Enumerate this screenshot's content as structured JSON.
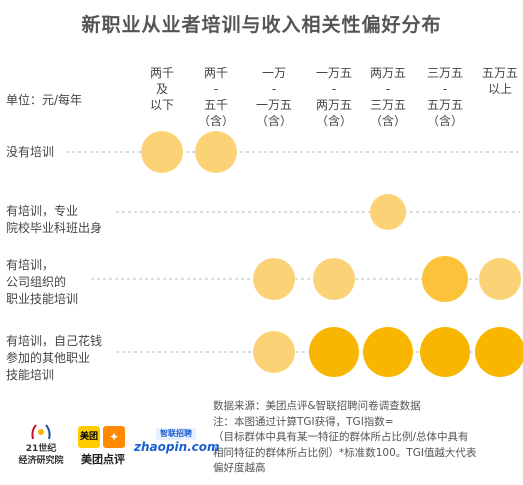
{
  "chart_data": {
    "type": "bubble-matrix",
    "title": "新职业从业者培训与收入相关性偏好分布",
    "unit_label": "单位：元/每年",
    "columns": [
      {
        "label_lines": [
          "两千",
          "及",
          "以下"
        ]
      },
      {
        "label_lines": [
          "两千",
          "-",
          "五千",
          "（含）"
        ]
      },
      {
        "label_lines": [
          "一万",
          "-",
          "一万五",
          "（含）"
        ]
      },
      {
        "label_lines": [
          "一万五",
          "-",
          "两万五",
          "（含）"
        ]
      },
      {
        "label_lines": [
          "两万五",
          "-",
          "三万五",
          "（含）"
        ]
      },
      {
        "label_lines": [
          "三万五",
          "-",
          "五万五",
          "（含）"
        ]
      },
      {
        "label_lines": [
          "五万五",
          "以上"
        ]
      }
    ],
    "rows": [
      {
        "label_lines": [
          "没有培训"
        ],
        "levels": [
          2,
          2,
          0,
          0,
          0,
          0,
          0
        ]
      },
      {
        "label_lines": [
          "有培训，专业",
          "院校毕业科班出身"
        ],
        "levels": [
          0,
          0,
          0,
          0,
          1,
          0,
          0
        ]
      },
      {
        "label_lines": [
          "有培训，",
          "公司组织的",
          "职业技能培训"
        ],
        "levels": [
          0,
          0,
          2,
          2,
          0,
          3,
          2
        ]
      },
      {
        "label_lines": [
          "有培训，自己花钱",
          "参加的其他职业",
          "技能培训"
        ],
        "levels": [
          0,
          0,
          2,
          4,
          4,
          4,
          4
        ]
      }
    ],
    "colors": {
      "light": "#fcd276",
      "mid": "#fbc23a",
      "strong": "#f8b600",
      "guide": "#bbbbbb"
    }
  },
  "notes": {
    "source": "数据来源：美团点评&智联招聘问卷调查数据",
    "note1": "注：本图通过计算TGI获得，TGI指数=",
    "note2": "（目标群体中具有某一特征的群体所占比例/总体中具有",
    "note3": "相同特征的群体所占比例）*标准数100。TGI值越大代表",
    "note4": "偏好度越高"
  },
  "logos": {
    "logo21_line1": "21世纪",
    "logo21_line2": "经济研究院",
    "meituan_box": "美团",
    "meituan_name": "美团点评",
    "zhaopin_top": "智联招聘",
    "zhaopin_word": "zhaopin.com"
  }
}
